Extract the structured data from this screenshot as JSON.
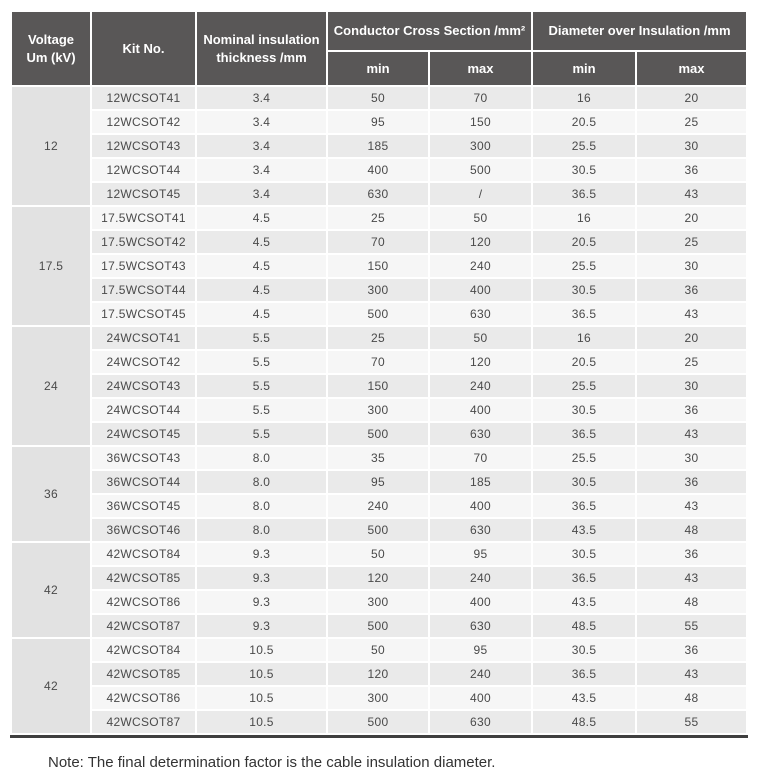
{
  "colors": {
    "header_bg": "#595757",
    "header_text": "#ffffff",
    "row_dark": "#eaeaea",
    "row_light": "#f6f6f6",
    "voltage_col_bg": "#e2e2e2",
    "cell_text": "#4a4a4a",
    "bottom_rule": "#3f3f3f"
  },
  "table": {
    "headers": {
      "voltage": "Voltage\nUm (kV)",
      "kit": "Kit No.",
      "nominal": "Nominal insulation\nthickness /mm",
      "ccs": "Conductor Cross Section /mm²",
      "dia": "Diameter over Insulation /mm",
      "min": "min",
      "max": "max"
    },
    "groups": [
      {
        "voltage": "12",
        "rows": [
          {
            "kit": "12WCSOT41",
            "thickness": "3.4",
            "ccs_min": "50",
            "ccs_max": "70",
            "dia_min": "16",
            "dia_max": "20"
          },
          {
            "kit": "12WCSOT42",
            "thickness": "3.4",
            "ccs_min": "95",
            "ccs_max": "150",
            "dia_min": "20.5",
            "dia_max": "25"
          },
          {
            "kit": "12WCSOT43",
            "thickness": "3.4",
            "ccs_min": "185",
            "ccs_max": "300",
            "dia_min": "25.5",
            "dia_max": "30"
          },
          {
            "kit": "12WCSOT44",
            "thickness": "3.4",
            "ccs_min": "400",
            "ccs_max": "500",
            "dia_min": "30.5",
            "dia_max": "36"
          },
          {
            "kit": "12WCSOT45",
            "thickness": "3.4",
            "ccs_min": "630",
            "ccs_max": "/",
            "dia_min": "36.5",
            "dia_max": "43"
          }
        ]
      },
      {
        "voltage": "17.5",
        "rows": [
          {
            "kit": "17.5WCSOT41",
            "thickness": "4.5",
            "ccs_min": "25",
            "ccs_max": "50",
            "dia_min": "16",
            "dia_max": "20"
          },
          {
            "kit": "17.5WCSOT42",
            "thickness": "4.5",
            "ccs_min": "70",
            "ccs_max": "120",
            "dia_min": "20.5",
            "dia_max": "25"
          },
          {
            "kit": "17.5WCSOT43",
            "thickness": "4.5",
            "ccs_min": "150",
            "ccs_max": "240",
            "dia_min": "25.5",
            "dia_max": "30"
          },
          {
            "kit": "17.5WCSOT44",
            "thickness": "4.5",
            "ccs_min": "300",
            "ccs_max": "400",
            "dia_min": "30.5",
            "dia_max": "36"
          },
          {
            "kit": "17.5WCSOT45",
            "thickness": "4.5",
            "ccs_min": "500",
            "ccs_max": "630",
            "dia_min": "36.5",
            "dia_max": "43"
          }
        ]
      },
      {
        "voltage": "24",
        "rows": [
          {
            "kit": "24WCSOT41",
            "thickness": "5.5",
            "ccs_min": "25",
            "ccs_max": "50",
            "dia_min": "16",
            "dia_max": "20"
          },
          {
            "kit": "24WCSOT42",
            "thickness": "5.5",
            "ccs_min": "70",
            "ccs_max": "120",
            "dia_min": "20.5",
            "dia_max": "25"
          },
          {
            "kit": "24WCSOT43",
            "thickness": "5.5",
            "ccs_min": "150",
            "ccs_max": "240",
            "dia_min": "25.5",
            "dia_max": "30"
          },
          {
            "kit": "24WCSOT44",
            "thickness": "5.5",
            "ccs_min": "300",
            "ccs_max": "400",
            "dia_min": "30.5",
            "dia_max": "36"
          },
          {
            "kit": "24WCSOT45",
            "thickness": "5.5",
            "ccs_min": "500",
            "ccs_max": "630",
            "dia_min": "36.5",
            "dia_max": "43"
          }
        ]
      },
      {
        "voltage": "36",
        "rows": [
          {
            "kit": "36WCSOT43",
            "thickness": "8.0",
            "ccs_min": "35",
            "ccs_max": "70",
            "dia_min": "25.5",
            "dia_max": "30"
          },
          {
            "kit": "36WCSOT44",
            "thickness": "8.0",
            "ccs_min": "95",
            "ccs_max": "185",
            "dia_min": "30.5",
            "dia_max": "36"
          },
          {
            "kit": "36WCSOT45",
            "thickness": "8.0",
            "ccs_min": "240",
            "ccs_max": "400",
            "dia_min": "36.5",
            "dia_max": "43"
          },
          {
            "kit": "36WCSOT46",
            "thickness": "8.0",
            "ccs_min": "500",
            "ccs_max": "630",
            "dia_min": "43.5",
            "dia_max": "48"
          }
        ]
      },
      {
        "voltage": "42",
        "rows": [
          {
            "kit": "42WCSOT84",
            "thickness": "9.3",
            "ccs_min": "50",
            "ccs_max": "95",
            "dia_min": "30.5",
            "dia_max": "36"
          },
          {
            "kit": "42WCSOT85",
            "thickness": "9.3",
            "ccs_min": "120",
            "ccs_max": "240",
            "dia_min": "36.5",
            "dia_max": "43"
          },
          {
            "kit": "42WCSOT86",
            "thickness": "9.3",
            "ccs_min": "300",
            "ccs_max": "400",
            "dia_min": "43.5",
            "dia_max": "48"
          },
          {
            "kit": "42WCSOT87",
            "thickness": "9.3",
            "ccs_min": "500",
            "ccs_max": "630",
            "dia_min": "48.5",
            "dia_max": "55"
          }
        ]
      },
      {
        "voltage": "42",
        "rows": [
          {
            "kit": "42WCSOT84",
            "thickness": "10.5",
            "ccs_min": "50",
            "ccs_max": "95",
            "dia_min": "30.5",
            "dia_max": "36"
          },
          {
            "kit": "42WCSOT85",
            "thickness": "10.5",
            "ccs_min": "120",
            "ccs_max": "240",
            "dia_min": "36.5",
            "dia_max": "43"
          },
          {
            "kit": "42WCSOT86",
            "thickness": "10.5",
            "ccs_min": "300",
            "ccs_max": "400",
            "dia_min": "43.5",
            "dia_max": "48"
          },
          {
            "kit": "42WCSOT87",
            "thickness": "10.5",
            "ccs_min": "500",
            "ccs_max": "630",
            "dia_min": "48.5",
            "dia_max": "55"
          }
        ]
      }
    ]
  },
  "note": "Note: The final determination factor is the cable insulation diameter."
}
